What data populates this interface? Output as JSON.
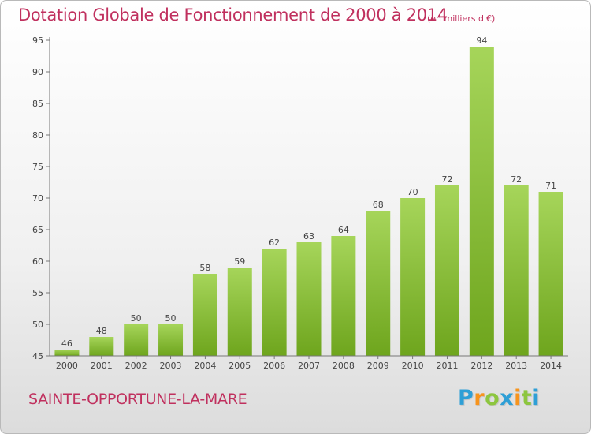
{
  "title": "Dotation Globale de Fonctionnement de 2000 à 2014",
  "subtitle": "(en milliers d'€)",
  "location": "SAINTE-OPPORTUNE-LA-MARE",
  "brand": {
    "letters": [
      "P",
      "r",
      "o",
      "x",
      "i",
      "t",
      "i"
    ],
    "colors": [
      "#2e9fd6",
      "#f7941d",
      "#8dc63f",
      "#2e9fd6",
      "#f7941d",
      "#8dc63f",
      "#2e9fd6"
    ]
  },
  "colors": {
    "title": "#c0305e",
    "bar_light": "#a6d55a",
    "bar_dark": "#6ea51d",
    "grid": "#c8c8c8",
    "axis": "#777777"
  },
  "chart_data": {
    "type": "bar",
    "title": "Dotation Globale de Fonctionnement de 2000 à 2014",
    "xlabel": "",
    "ylabel": "",
    "categories": [
      "2000",
      "2001",
      "2002",
      "2003",
      "2004",
      "2005",
      "2006",
      "2007",
      "2008",
      "2009",
      "2010",
      "2011",
      "2012",
      "2013",
      "2014"
    ],
    "values": [
      46,
      48,
      50,
      50,
      58,
      59,
      62,
      63,
      64,
      68,
      70,
      72,
      94,
      72,
      71
    ],
    "ylim": [
      45,
      95
    ],
    "yticks": [
      45,
      50,
      55,
      60,
      65,
      70,
      75,
      80,
      85,
      90,
      95
    ],
    "grid": false
  }
}
